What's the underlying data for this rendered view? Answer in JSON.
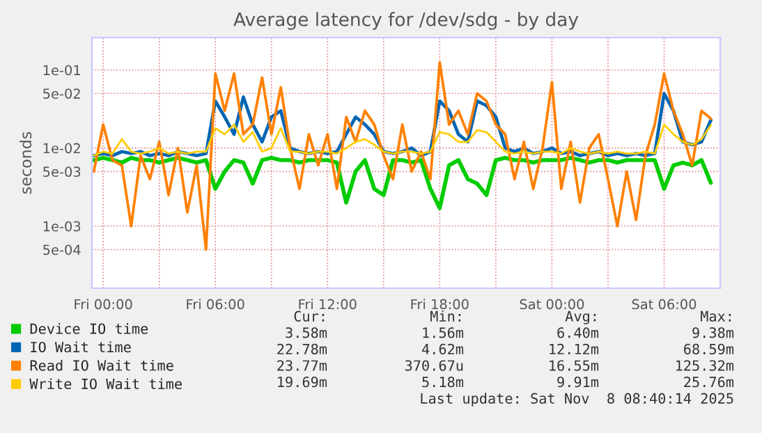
{
  "chart_data": {
    "type": "line",
    "title": "Average latency for /dev/sdg - by day",
    "ylabel": "seconds",
    "x": [
      "2025-11-06T23:30",
      "2025-11-07T00:00",
      "2025-11-07T00:30",
      "2025-11-07T01:00",
      "2025-11-07T01:30",
      "2025-11-07T02:00",
      "2025-11-07T02:30",
      "2025-11-07T03:00",
      "2025-11-07T03:30",
      "2025-11-07T04:00",
      "2025-11-07T04:30",
      "2025-11-07T05:00",
      "2025-11-07T05:30",
      "2025-11-07T06:00",
      "2025-11-07T06:30",
      "2025-11-07T07:00",
      "2025-11-07T07:30",
      "2025-11-07T08:00",
      "2025-11-07T08:30",
      "2025-11-07T09:00",
      "2025-11-07T09:30",
      "2025-11-07T10:00",
      "2025-11-07T10:30",
      "2025-11-07T11:00",
      "2025-11-07T11:30",
      "2025-11-07T12:00",
      "2025-11-07T12:30",
      "2025-11-07T13:00",
      "2025-11-07T13:30",
      "2025-11-07T14:00",
      "2025-11-07T14:30",
      "2025-11-07T15:00",
      "2025-11-07T15:30",
      "2025-11-07T16:00",
      "2025-11-07T16:30",
      "2025-11-07T17:00",
      "2025-11-07T17:30",
      "2025-11-07T18:00",
      "2025-11-07T18:30",
      "2025-11-07T19:00",
      "2025-11-07T19:30",
      "2025-11-07T20:00",
      "2025-11-07T20:30",
      "2025-11-07T21:00",
      "2025-11-07T21:30",
      "2025-11-07T22:00",
      "2025-11-07T22:30",
      "2025-11-07T23:00",
      "2025-11-07T23:30",
      "2025-11-08T00:00",
      "2025-11-08T00:30",
      "2025-11-08T01:00",
      "2025-11-08T01:30",
      "2025-11-08T02:00",
      "2025-11-08T02:30",
      "2025-11-08T03:00",
      "2025-11-08T03:30",
      "2025-11-08T04:00",
      "2025-11-08T04:30",
      "2025-11-08T05:00",
      "2025-11-08T05:30",
      "2025-11-08T06:00",
      "2025-11-08T06:30",
      "2025-11-08T07:00",
      "2025-11-08T07:30",
      "2025-11-08T08:00",
      "2025-11-08T08:30"
    ],
    "series": [
      {
        "name": "Device IO time",
        "color": "#00cc00",
        "values": [
          0.007,
          0.0075,
          0.007,
          0.0065,
          0.0075,
          0.007,
          0.007,
          0.0065,
          0.007,
          0.0075,
          0.007,
          0.0065,
          0.007,
          0.003,
          0.005,
          0.007,
          0.0065,
          0.0035,
          0.007,
          0.0075,
          0.007,
          0.007,
          0.0065,
          0.007,
          0.007,
          0.007,
          0.0065,
          0.002,
          0.005,
          0.007,
          0.003,
          0.0025,
          0.007,
          0.007,
          0.0065,
          0.007,
          0.003,
          0.0017,
          0.006,
          0.007,
          0.004,
          0.0035,
          0.0025,
          0.007,
          0.0075,
          0.007,
          0.007,
          0.0065,
          0.007,
          0.007,
          0.007,
          0.0075,
          0.007,
          0.0065,
          0.007,
          0.007,
          0.0065,
          0.007,
          0.007,
          0.007,
          0.007,
          0.003,
          0.006,
          0.0065,
          0.006,
          0.007,
          0.00358
        ]
      },
      {
        "name": "IO Wait time",
        "color": "#0066b3",
        "values": [
          0.008,
          0.0085,
          0.008,
          0.009,
          0.0085,
          0.009,
          0.008,
          0.0085,
          0.008,
          0.009,
          0.0085,
          0.008,
          0.0085,
          0.04,
          0.025,
          0.015,
          0.045,
          0.02,
          0.012,
          0.025,
          0.03,
          0.01,
          0.009,
          0.0085,
          0.009,
          0.0085,
          0.009,
          0.015,
          0.025,
          0.02,
          0.015,
          0.009,
          0.0085,
          0.009,
          0.01,
          0.008,
          0.009,
          0.04,
          0.03,
          0.015,
          0.012,
          0.04,
          0.035,
          0.025,
          0.01,
          0.009,
          0.01,
          0.0085,
          0.009,
          0.01,
          0.0085,
          0.009,
          0.008,
          0.0085,
          0.009,
          0.008,
          0.0085,
          0.008,
          0.0085,
          0.008,
          0.0085,
          0.05,
          0.03,
          0.012,
          0.011,
          0.012,
          0.02278
        ]
      },
      {
        "name": "Read IO Wait time",
        "color": "#ff8000",
        "values": [
          0.005,
          0.02,
          0.007,
          0.006,
          0.001,
          0.008,
          0.004,
          0.012,
          0.0025,
          0.01,
          0.0015,
          0.006,
          0.0005,
          0.09,
          0.03,
          0.09,
          0.015,
          0.02,
          0.08,
          0.015,
          0.06,
          0.01,
          0.003,
          0.015,
          0.006,
          0.015,
          0.003,
          0.025,
          0.012,
          0.03,
          0.02,
          0.008,
          0.004,
          0.02,
          0.005,
          0.009,
          0.004,
          0.125,
          0.02,
          0.03,
          0.015,
          0.05,
          0.04,
          0.02,
          0.015,
          0.004,
          0.012,
          0.003,
          0.01,
          0.07,
          0.003,
          0.012,
          0.002,
          0.01,
          0.015,
          0.004,
          0.001,
          0.005,
          0.0012,
          0.008,
          0.02,
          0.09,
          0.03,
          0.015,
          0.006,
          0.03,
          0.02377
        ]
      },
      {
        "name": "Write IO Wait time",
        "color": "#ffcc00",
        "values": [
          0.008,
          0.009,
          0.0085,
          0.013,
          0.009,
          0.0085,
          0.009,
          0.01,
          0.0085,
          0.009,
          0.0085,
          0.009,
          0.009,
          0.018,
          0.015,
          0.02,
          0.012,
          0.016,
          0.009,
          0.01,
          0.018,
          0.009,
          0.009,
          0.0085,
          0.009,
          0.009,
          0.0085,
          0.01,
          0.012,
          0.013,
          0.011,
          0.009,
          0.0085,
          0.009,
          0.009,
          0.0085,
          0.009,
          0.016,
          0.015,
          0.012,
          0.012,
          0.017,
          0.016,
          0.012,
          0.009,
          0.0085,
          0.009,
          0.0085,
          0.009,
          0.009,
          0.0085,
          0.01,
          0.009,
          0.0085,
          0.009,
          0.0085,
          0.009,
          0.0085,
          0.0085,
          0.009,
          0.0085,
          0.02,
          0.015,
          0.012,
          0.011,
          0.013,
          0.01969
        ]
      }
    ],
    "log": true,
    "ylim": [
      0.00016,
      0.26
    ],
    "yticks": [
      {
        "value": 0.0005,
        "label": "5e-04"
      },
      {
        "value": 0.001,
        "label": "1e-03"
      },
      {
        "value": 0.005,
        "label": "5e-03"
      },
      {
        "value": 0.01,
        "label": "1e-02"
      },
      {
        "value": 0.05,
        "label": "5e-02"
      },
      {
        "value": 0.1,
        "label": "1e-01"
      }
    ],
    "xlim": [
      "2025-11-06T23:24",
      "2025-11-08T09:00"
    ],
    "xticks": [
      {
        "value": "2025-11-07T00:00",
        "label": "Fri 00:00"
      },
      {
        "value": "2025-11-07T03:00",
        "label": null
      },
      {
        "value": "2025-11-07T06:00",
        "label": "Fri 06:00"
      },
      {
        "value": "2025-11-07T09:00",
        "label": null
      },
      {
        "value": "2025-11-07T12:00",
        "label": "Fri 12:00"
      },
      {
        "value": "2025-11-07T15:00",
        "label": null
      },
      {
        "value": "2025-11-07T18:00",
        "label": "Fri 18:00"
      },
      {
        "value": "2025-11-07T21:00",
        "label": null
      },
      {
        "value": "2025-11-08T00:00",
        "label": "Sat 00:00"
      },
      {
        "value": "2025-11-08T03:00",
        "label": null
      },
      {
        "value": "2025-11-08T06:00",
        "label": "Sat 06:00"
      }
    ],
    "grid": true,
    "legend": "bottom",
    "marker": "none",
    "line_style": "solid",
    "annotations": [
      "Cur:",
      "Min:",
      "Avg:",
      "Max:",
      "3.58m",
      "1.56m",
      "6.40m",
      "9.38m",
      "22.78m",
      "4.62m",
      "12.12m",
      "68.59m",
      "23.77m",
      "370.67u",
      "16.55m",
      "125.32m",
      "19.69m",
      "5.18m",
      "9.91m",
      "25.76m",
      "Last update: Sat Nov  8 08:40:14 2025"
    ]
  }
}
